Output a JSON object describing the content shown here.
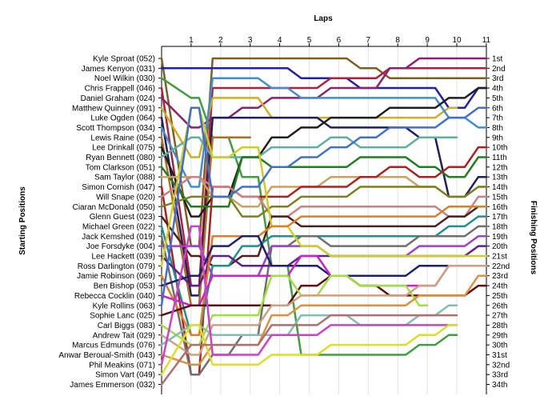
{
  "chart_data": {
    "type": "line",
    "title": "",
    "top_axis_label": "Laps",
    "left_axis_label": "Starting Positions",
    "right_axis_label": "Finishing Positions",
    "laps": [
      "1",
      "2",
      "3",
      "4",
      "5",
      "6",
      "7",
      "8",
      "9",
      "10",
      "11"
    ],
    "grid": true,
    "y_inverted": true,
    "drivers": [
      "Kyle Sproat (052)",
      "James Kenyon (031)",
      "Noel Wilkin (030)",
      "Chris Frappell (046)",
      "Daniel Graham (024)",
      "Matthew Quinney (091)",
      "Luke Ogden (064)",
      "Scott Thompson (034)",
      "Lewis Raine (054)",
      "Lee Drinkall (075)",
      "Ryan Bennett (080)",
      "Tom Clarkson (051)",
      "Sam Taylor (088)",
      "Simon Cornish (047)",
      "Will Snape (020)",
      "Ciaran McDonald (050)",
      "Glenn Guest (023)",
      "Michael Green (022)",
      "Jack Kemshed (019)",
      "Joe Forsdyke (004)",
      "Lee Hackett (039)",
      "Ross Darlington (079)",
      "Jamie Robinson (069)",
      "Ben Bishop (053)",
      "Rebecca Cocklin (040)",
      "Kyle Rollins (063)",
      "Sophie Lanc (025)",
      "Carl Biggs (083)",
      "Andrew Tait (029)",
      "Marcus Edmunds (076)",
      "Anwar Beroual-Smith (043)",
      "Phil Meakins (071)",
      "Simon Vart (049)",
      "James Emmerson (032)"
    ],
    "finishing_positions": [
      "1st",
      "2nd",
      "3rd",
      "4th",
      "5th",
      "6th",
      "7th",
      "8th",
      "9th",
      "10th",
      "11th",
      "12th",
      "13th",
      "14th",
      "15th",
      "16th",
      "17th",
      "18th",
      "19th",
      "20th",
      "21st",
      "22nd",
      "23rd",
      "24th",
      "25th",
      "26th",
      "27th",
      "28th",
      "29th",
      "30th",
      "31st",
      "32nd",
      "33rd",
      "34th"
    ],
    "series": [
      {
        "color": "#7f5f1f",
        "positions": [
          1,
          20,
          1,
          1,
          1,
          1,
          1,
          2,
          3,
          3,
          3,
          3
        ]
      },
      {
        "color": "#1f1faf",
        "positions": [
          2,
          2,
          2,
          2,
          2,
          3,
          3,
          4,
          4,
          4,
          6,
          4
        ]
      },
      {
        "color": "#3f9f3f",
        "positions": [
          3,
          5,
          9,
          13,
          22,
          31,
          31,
          31,
          31,
          30,
          29
        ]
      },
      {
        "color": "#af1f3f",
        "positions": [
          4,
          24,
          4,
          4,
          4,
          4,
          3,
          3,
          2,
          2,
          2,
          2
        ]
      },
      {
        "color": "#8f1f6f",
        "positions": [
          5,
          8,
          7,
          6,
          5,
          5,
          4,
          4,
          2,
          1,
          1,
          1
        ]
      },
      {
        "color": "#cfaf1f",
        "positions": [
          6,
          11,
          5,
          5,
          7,
          7,
          7,
          7,
          7,
          7,
          6
        ]
      },
      {
        "color": "#1f1f5f",
        "positions": [
          7,
          25,
          7,
          7,
          7,
          7,
          8,
          8,
          8,
          9,
          15,
          13
        ]
      },
      {
        "color": "#3f8fcf",
        "positions": [
          8,
          14,
          3,
          3,
          4,
          5,
          5,
          5,
          5,
          5,
          7,
          8
        ]
      },
      {
        "color": "#af6f1f",
        "positions": [
          9,
          26,
          9,
          9
        ]
      },
      {
        "color": "#1f1f1f",
        "positions": [
          10,
          17,
          15,
          11,
          9,
          8,
          7,
          7,
          6,
          6,
          5,
          4
        ]
      },
      {
        "color": "#5faf9f",
        "positions": [
          11,
          9,
          11,
          11,
          10,
          10,
          9,
          10,
          10,
          9,
          9
        ]
      },
      {
        "color": "#1f7f1f",
        "positions": [
          12,
          16,
          16,
          11,
          12,
          12,
          12,
          11,
          11,
          12,
          13,
          11
        ]
      },
      {
        "color": "#cf9f5f",
        "positions": [
          13,
          13,
          15,
          16,
          14,
          14,
          13,
          13,
          13,
          14,
          15,
          14
        ]
      },
      {
        "color": "#af1f1f",
        "positions": [
          14,
          33,
          14,
          15,
          15,
          14,
          14,
          13,
          12,
          13,
          12,
          10
        ]
      },
      {
        "color": "#cf7f7f",
        "positions": [
          15,
          13,
          14,
          15,
          17,
          16,
          16,
          16,
          16,
          16,
          17,
          15
        ]
      },
      {
        "color": "#7f7f1f",
        "positions": [
          16,
          15,
          15,
          17,
          16,
          15,
          15,
          14,
          14,
          14,
          15,
          14
        ]
      },
      {
        "color": "#4f1f1f",
        "positions": [
          17,
          21,
          22,
          21,
          17,
          18,
          18,
          18,
          18,
          18,
          17,
          16
        ]
      },
      {
        "color": "#1f8f8f",
        "positions": [
          18,
          29,
          22,
          20,
          19,
          19,
          19,
          19,
          19,
          19,
          18,
          17
        ]
      },
      {
        "color": "#6f6f6f",
        "positions": [
          19,
          33,
          31,
          29,
          20,
          19,
          20,
          20,
          20,
          19,
          19,
          18
        ]
      },
      {
        "color": "#9f3fcf",
        "positions": [
          20,
          20,
          23,
          23,
          20,
          20,
          21,
          21,
          21,
          20,
          20,
          19
        ]
      },
      {
        "color": "#5f1f8f",
        "positions": [
          21,
          24,
          21,
          22,
          22,
          21,
          21,
          21,
          21,
          21,
          21,
          20
        ]
      },
      {
        "color": "#cfcf1f",
        "positions": [
          22,
          6,
          11,
          10,
          18,
          20,
          21,
          21,
          21,
          21,
          21,
          21
        ]
      },
      {
        "color": "#df7f1f",
        "positions": [
          23,
          29,
          19,
          19,
          18,
          17,
          17,
          17,
          17,
          17,
          16,
          16
        ]
      },
      {
        "color": "#1f1f6f",
        "positions": [
          24,
          23,
          20,
          19,
          22,
          22,
          23,
          23,
          23,
          22,
          22,
          22
        ]
      },
      {
        "color": "#cf1fcf",
        "positions": [
          25,
          26,
          23,
          23,
          23,
          21,
          23,
          24,
          24,
          24,
          22,
          22
        ]
      },
      {
        "color": "#3f6fcf",
        "positions": [
          26,
          6,
          15,
          14,
          12,
          11,
          10,
          9,
          8,
          8,
          7,
          6
        ]
      },
      {
        "color": "#5f0f0f",
        "positions": [
          27,
          26,
          26,
          26,
          26,
          24,
          23,
          24,
          25,
          25,
          25,
          24
        ]
      },
      {
        "color": "#9fdf3f",
        "positions": [
          28,
          30,
          27,
          27,
          23,
          25,
          23,
          24,
          24,
          26
        ]
      },
      {
        "color": "#cf9f7f",
        "positions": [
          29,
          31,
          28,
          28,
          26,
          25,
          25,
          25,
          25,
          24,
          22,
          22
        ]
      },
      {
        "color": "#7fbfaf",
        "positions": [
          30,
          28,
          29,
          29,
          29,
          27,
          27,
          28,
          28,
          27,
          26
        ]
      },
      {
        "color": "#df8f3f",
        "positions": [
          31,
          32,
          30,
          30,
          27,
          26,
          26,
          26,
          26,
          25,
          25,
          23
        ]
      },
      {
        "color": "#cf3fcf",
        "positions": [
          32,
          18,
          31,
          31,
          29,
          29,
          28,
          28,
          28,
          28,
          28
        ]
      },
      {
        "color": "#dfdf1f",
        "positions": [
          33,
          28,
          32,
          32,
          31,
          31,
          30,
          30,
          30,
          29,
          28
        ]
      },
      {
        "color": "#af6f6f",
        "positions": [
          34,
          30,
          30,
          30,
          28,
          28,
          27,
          27,
          27,
          27,
          27
        ]
      }
    ]
  }
}
